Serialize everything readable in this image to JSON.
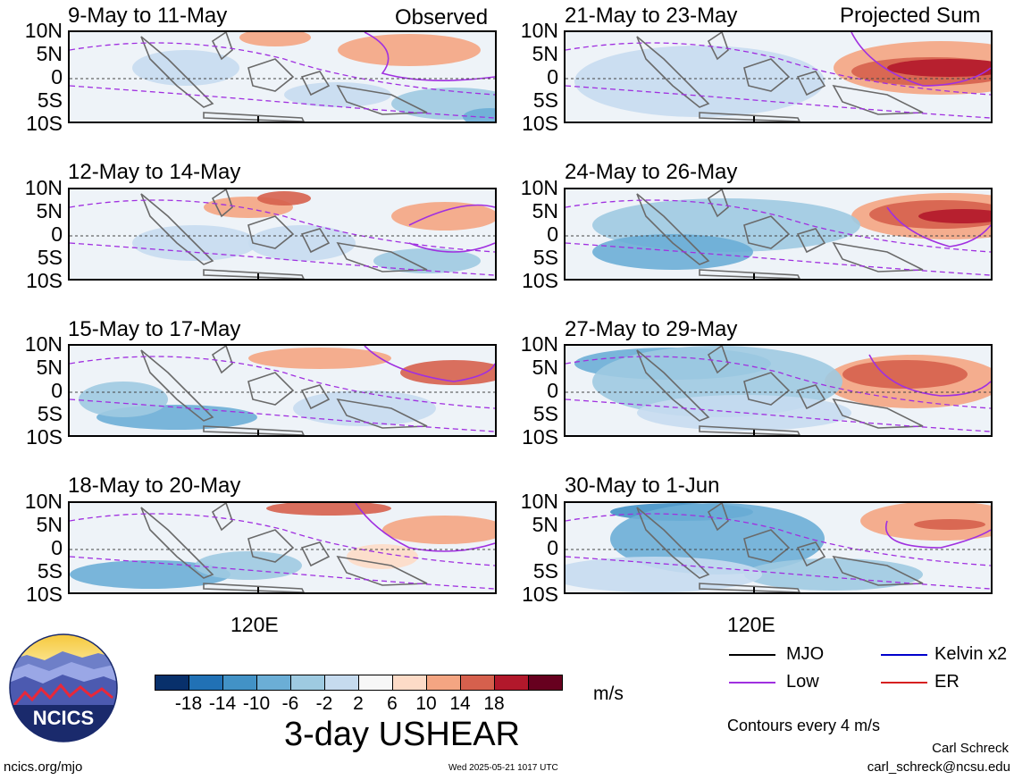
{
  "header": {
    "left_label": "Observed",
    "right_label": "Projected Sum"
  },
  "lat_labels": [
    "10N",
    "5N",
    "0",
    "5S",
    "10S"
  ],
  "lon_label": "120E",
  "panels_left": [
    {
      "title": "9-May to 11-May"
    },
    {
      "title": "12-May to 14-May"
    },
    {
      "title": "15-May to 17-May"
    },
    {
      "title": "18-May to 20-May"
    }
  ],
  "panels_right": [
    {
      "title": "21-May to 23-May"
    },
    {
      "title": "24-May to 26-May"
    },
    {
      "title": "27-May to 29-May"
    },
    {
      "title": "30-May to 1-Jun"
    }
  ],
  "colorbar": {
    "title": "3-day USHEAR",
    "units": "m/s",
    "tick_labels": [
      "-18",
      "-14",
      "-10",
      "-6",
      "-2",
      "2",
      "6",
      "10",
      "14",
      "18"
    ],
    "colors": [
      "#08306b",
      "#2171b5",
      "#4292c6",
      "#6baed6",
      "#9ecae1",
      "#c6dbef",
      "#f7f7f7",
      "#fddbc7",
      "#f4a582",
      "#d6604d",
      "#b2182b",
      "#67001f"
    ]
  },
  "legend": {
    "items": [
      {
        "label": "MJO",
        "color": "#000000"
      },
      {
        "label": "Kelvin x2",
        "color": "#0000cc"
      },
      {
        "label": "Low",
        "color": "#a030e0"
      },
      {
        "label": "ER",
        "color": "#d62020"
      }
    ],
    "note": "Contours every 4 m/s"
  },
  "footer": {
    "logo_text": "NCICS",
    "url": "ncics.org/mjo",
    "timestamp": "Wed 2025-05-21 1017 UTC",
    "author": "Carl Schreck",
    "email": "carl_schreck@ncsu.edu"
  }
}
